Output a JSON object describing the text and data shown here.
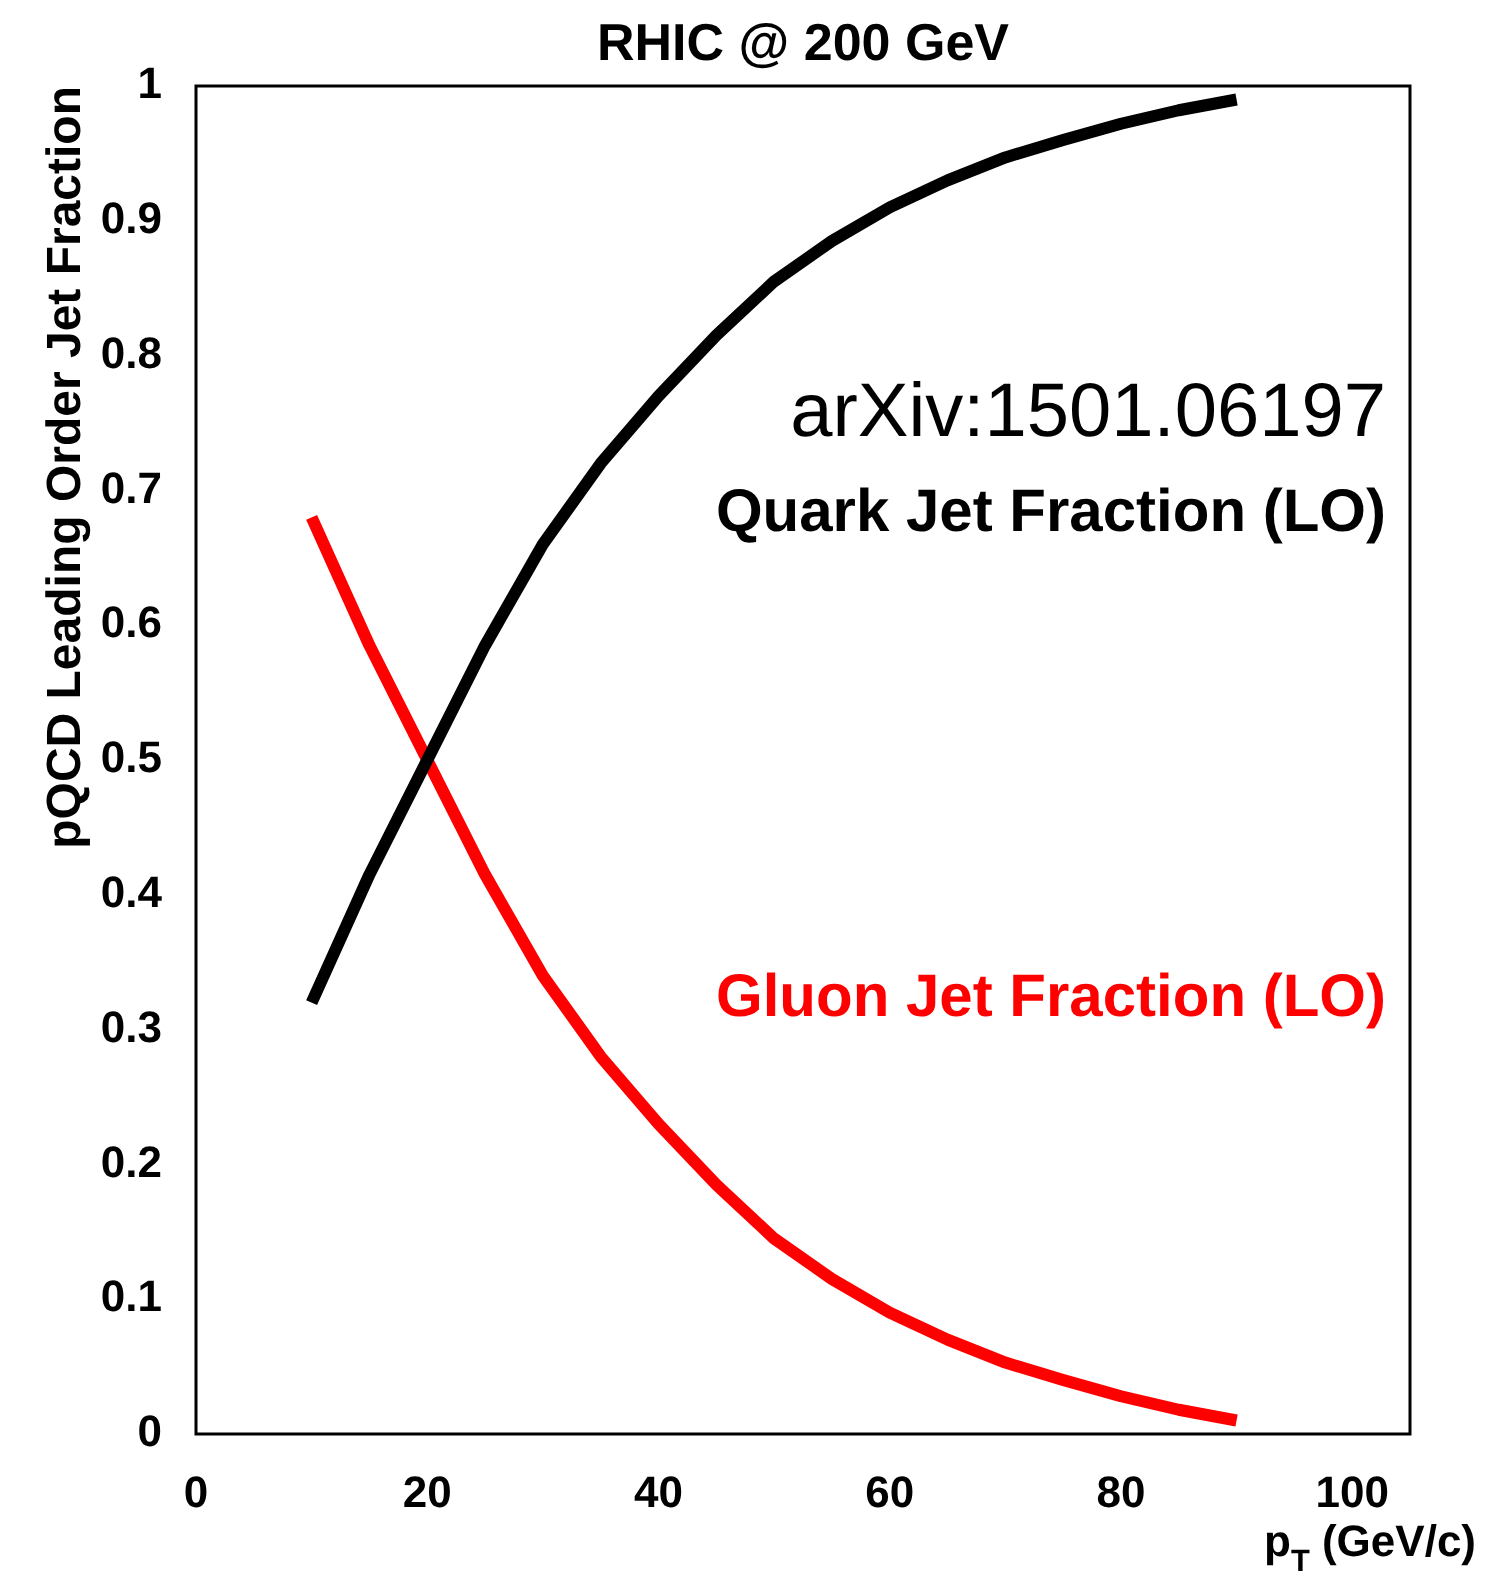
{
  "chart_data": {
    "type": "line",
    "title": "RHIC @ 200 GeV",
    "xlabel": "p$_{T}$ (GeV/c)",
    "ylabel": "pQCD Leading Order Jet Fraction",
    "annotations": [
      "arXiv:1501.06197"
    ],
    "x": [
      10,
      15,
      20,
      25,
      30,
      35,
      40,
      45,
      50,
      55,
      60,
      65,
      70,
      75,
      80,
      85,
      90
    ],
    "series": [
      {
        "name": "Quark Jet Fraction (LO)",
        "color": "#000000",
        "values": [
          0.32,
          0.415,
          0.5,
          0.585,
          0.66,
          0.72,
          0.77,
          0.815,
          0.855,
          0.885,
          0.91,
          0.93,
          0.947,
          0.96,
          0.972,
          0.982,
          0.99
        ]
      },
      {
        "name": "Gluon Jet Fraction (LO)",
        "color": "#ff0000",
        "values": [
          0.68,
          0.585,
          0.5,
          0.415,
          0.34,
          0.28,
          0.23,
          0.185,
          0.145,
          0.115,
          0.09,
          0.07,
          0.053,
          0.04,
          0.028,
          0.018,
          0.01
        ]
      }
    ],
    "xlim": [
      0,
      105
    ],
    "ylim": [
      0,
      1
    ],
    "xticks": [
      0,
      20,
      40,
      60,
      80,
      100
    ],
    "yticks": [
      0,
      0.1,
      0.2,
      0.3,
      0.4,
      0.5,
      0.6,
      0.7,
      0.8,
      0.9,
      1
    ],
    "grid": false,
    "legend": false,
    "marker": "none",
    "line_style": "solid"
  }
}
